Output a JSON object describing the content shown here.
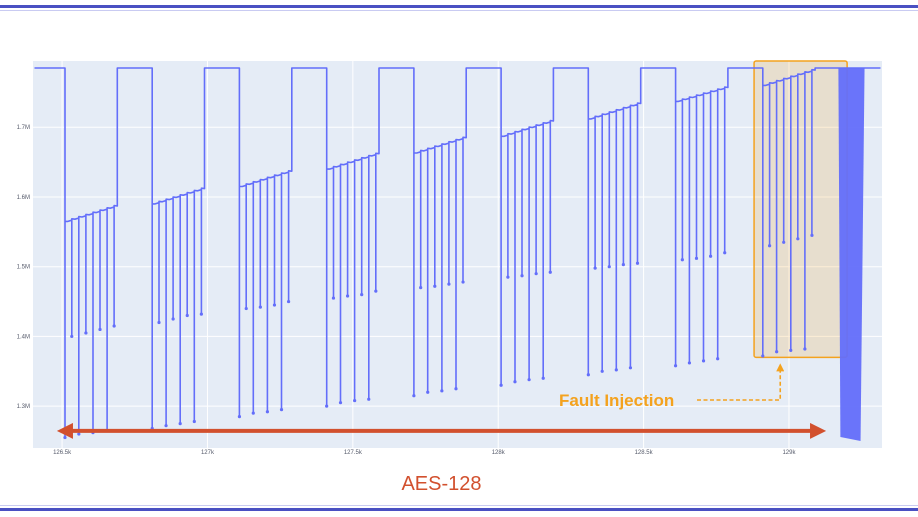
{
  "chart_data": {
    "type": "line",
    "title": "",
    "xlabel": "",
    "ylabel": "",
    "xlim": [
      126400,
      129320
    ],
    "ylim": [
      1240000,
      1795000
    ],
    "grid": true,
    "x_ticks": [
      {
        "value": 126500,
        "label": "126.5k"
      },
      {
        "value": 127000,
        "label": "127k"
      },
      {
        "value": 127500,
        "label": "127.5k"
      },
      {
        "value": 128000,
        "label": "128k"
      },
      {
        "value": 128500,
        "label": "128.5k"
      },
      {
        "value": 129000,
        "label": "129k"
      }
    ],
    "y_ticks": [
      {
        "value": 1300000,
        "label": "1.3M"
      },
      {
        "value": 1400000,
        "label": "1.4M"
      },
      {
        "value": 1500000,
        "label": "1.5M"
      },
      {
        "value": 1600000,
        "label": "1.6M"
      },
      {
        "value": 1700000,
        "label": "1.7M"
      }
    ],
    "series": [
      {
        "color": "#636efa",
        "baseline": 1785000,
        "rounds": [
          {
            "start": 126520,
            "end": 126690,
            "level_low": 1565000,
            "level_high": 1587000,
            "deep": 1255000,
            "second": 1260000,
            "dips": [
              1400000,
              1260000,
              1405000,
              1262000,
              1410000,
              1265000,
              1415000
            ]
          },
          {
            "start": 126820,
            "end": 126990,
            "level_low": 1590000,
            "level_high": 1612000,
            "deep": 1268000,
            "second": 1270000,
            "dips": [
              1420000,
              1272000,
              1425000,
              1275000,
              1430000,
              1278000,
              1432000
            ]
          },
          {
            "start": 127120,
            "end": 127290,
            "level_low": 1615000,
            "level_high": 1637000,
            "deep": 1285000,
            "second": 1288000,
            "dips": [
              1440000,
              1290000,
              1442000,
              1292000,
              1445000,
              1295000,
              1450000
            ]
          },
          {
            "start": 127420,
            "end": 127590,
            "level_low": 1640000,
            "level_high": 1662000,
            "deep": 1300000,
            "second": 1302000,
            "dips": [
              1455000,
              1305000,
              1458000,
              1308000,
              1460000,
              1310000,
              1465000
            ]
          },
          {
            "start": 127720,
            "end": 127890,
            "level_low": 1663000,
            "level_high": 1685000,
            "deep": 1315000,
            "second": 1318000,
            "dips": [
              1470000,
              1320000,
              1472000,
              1322000,
              1475000,
              1325000,
              1478000
            ]
          },
          {
            "start": 128020,
            "end": 128190,
            "level_low": 1687000,
            "level_high": 1709000,
            "deep": 1330000,
            "second": 1333000,
            "dips": [
              1485000,
              1335000,
              1487000,
              1338000,
              1490000,
              1340000,
              1492000
            ]
          },
          {
            "start": 128320,
            "end": 128490,
            "level_low": 1712000,
            "level_high": 1734000,
            "deep": 1345000,
            "second": 1348000,
            "dips": [
              1498000,
              1350000,
              1500000,
              1352000,
              1503000,
              1355000,
              1505000
            ]
          },
          {
            "start": 128620,
            "end": 128790,
            "level_low": 1737000,
            "level_high": 1757000,
            "deep": 1358000,
            "second": 1360000,
            "dips": [
              1510000,
              1362000,
              1512000,
              1365000,
              1515000,
              1368000,
              1520000
            ]
          },
          {
            "start": 128920,
            "end": 129090,
            "level_low": 1760000,
            "level_high": 1782000,
            "deep": 1372000,
            "second": 1375000,
            "dips": [
              1530000,
              1378000,
              1535000,
              1380000,
              1540000,
              1382000,
              1545000
            ]
          }
        ],
        "tail_band": {
          "start": 129170,
          "end": 129260,
          "low": 1250000,
          "high": 1785000
        }
      }
    ],
    "annotations": [
      {
        "type": "highlight-box",
        "x_range": [
          128880,
          129200
        ],
        "y_range": [
          1370000,
          1795000
        ],
        "color": "#f4a21e"
      },
      {
        "type": "label",
        "text": "Fault Injection",
        "color": "#f4a21e",
        "points_to": {
          "x": 128970,
          "y": 1370000
        }
      },
      {
        "type": "double-arrow",
        "text": "AES-128",
        "x_range": [
          126510,
          129100
        ],
        "y": 1253000,
        "color": "#d2502e"
      }
    ]
  }
}
